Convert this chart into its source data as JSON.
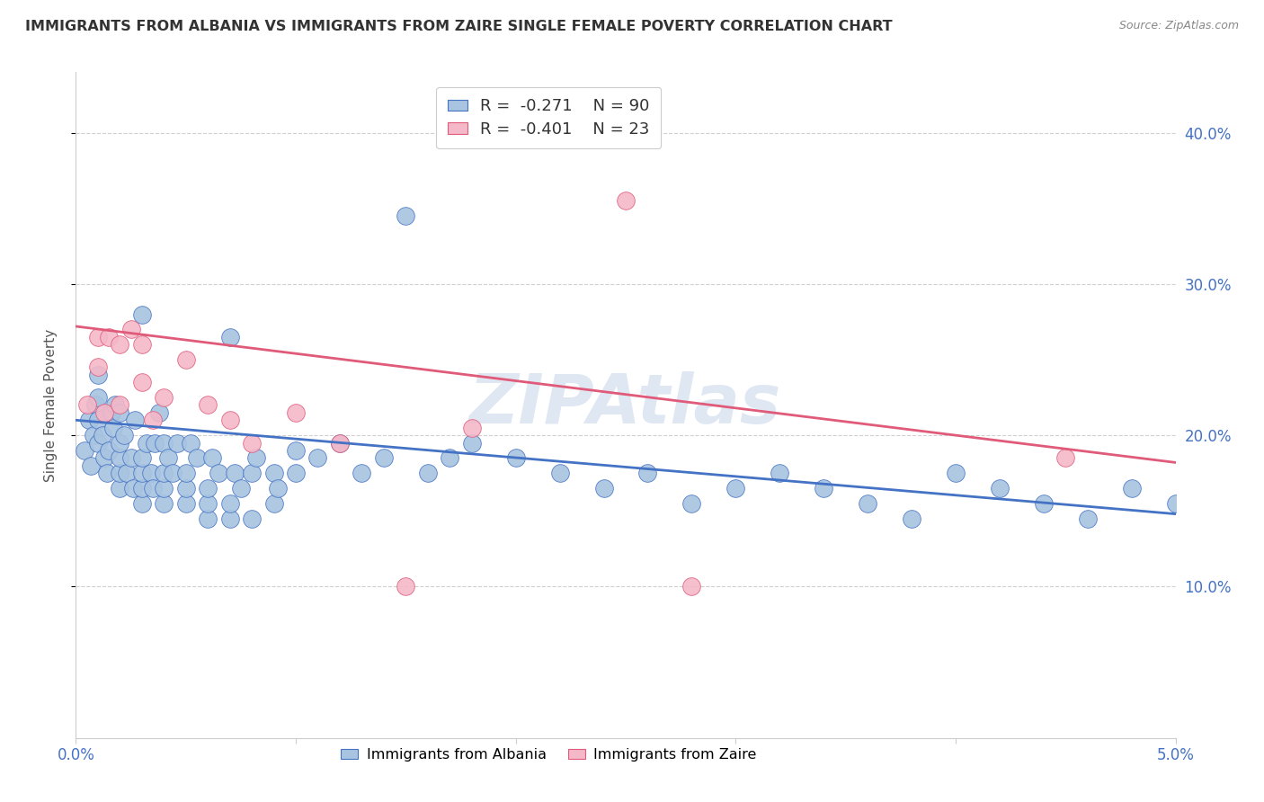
{
  "title": "IMMIGRANTS FROM ALBANIA VS IMMIGRANTS FROM ZAIRE SINGLE FEMALE POVERTY CORRELATION CHART",
  "source": "Source: ZipAtlas.com",
  "ylabel": "Single Female Poverty",
  "yaxis_labels": [
    "10.0%",
    "20.0%",
    "30.0%",
    "40.0%"
  ],
  "yaxis_values": [
    0.1,
    0.2,
    0.3,
    0.4
  ],
  "xmin": 0.0,
  "xmax": 0.05,
  "ymin": 0.0,
  "ymax": 0.44,
  "color_albania": "#a8c4e0",
  "color_zaire": "#f4b8c8",
  "line_color_albania": "#4472c4",
  "line_color_zaire": "#e05a7a",
  "watermark": "ZIPAtlas",
  "albania_line_x0": 0.0,
  "albania_line_y0": 0.21,
  "albania_line_x1": 0.05,
  "albania_line_y1": 0.148,
  "zaire_line_x0": 0.0,
  "zaire_line_y0": 0.272,
  "zaire_line_x1": 0.05,
  "zaire_line_y1": 0.182,
  "albania_x": [
    0.0004,
    0.0006,
    0.0007,
    0.0008,
    0.0009,
    0.001,
    0.001,
    0.001,
    0.001,
    0.0012,
    0.0013,
    0.0014,
    0.0015,
    0.0016,
    0.0017,
    0.0018,
    0.002,
    0.002,
    0.002,
    0.002,
    0.002,
    0.0022,
    0.0023,
    0.0025,
    0.0026,
    0.0027,
    0.003,
    0.003,
    0.003,
    0.003,
    0.003,
    0.0032,
    0.0034,
    0.0035,
    0.0036,
    0.0038,
    0.004,
    0.004,
    0.004,
    0.004,
    0.0042,
    0.0044,
    0.0046,
    0.005,
    0.005,
    0.005,
    0.0052,
    0.0055,
    0.006,
    0.006,
    0.006,
    0.0062,
    0.0065,
    0.007,
    0.007,
    0.007,
    0.0072,
    0.0075,
    0.008,
    0.008,
    0.0082,
    0.009,
    0.009,
    0.0092,
    0.01,
    0.01,
    0.011,
    0.012,
    0.013,
    0.014,
    0.015,
    0.016,
    0.017,
    0.018,
    0.02,
    0.022,
    0.024,
    0.026,
    0.028,
    0.03,
    0.032,
    0.034,
    0.036,
    0.038,
    0.04,
    0.042,
    0.044,
    0.046,
    0.048,
    0.05
  ],
  "albania_y": [
    0.19,
    0.21,
    0.18,
    0.2,
    0.22,
    0.195,
    0.21,
    0.225,
    0.24,
    0.2,
    0.185,
    0.175,
    0.19,
    0.215,
    0.205,
    0.22,
    0.165,
    0.175,
    0.185,
    0.195,
    0.215,
    0.2,
    0.175,
    0.185,
    0.165,
    0.21,
    0.155,
    0.165,
    0.175,
    0.185,
    0.28,
    0.195,
    0.175,
    0.165,
    0.195,
    0.215,
    0.155,
    0.165,
    0.175,
    0.195,
    0.185,
    0.175,
    0.195,
    0.155,
    0.165,
    0.175,
    0.195,
    0.185,
    0.145,
    0.155,
    0.165,
    0.185,
    0.175,
    0.145,
    0.155,
    0.265,
    0.175,
    0.165,
    0.145,
    0.175,
    0.185,
    0.155,
    0.175,
    0.165,
    0.175,
    0.19,
    0.185,
    0.195,
    0.175,
    0.185,
    0.345,
    0.175,
    0.185,
    0.195,
    0.185,
    0.175,
    0.165,
    0.175,
    0.155,
    0.165,
    0.175,
    0.165,
    0.155,
    0.145,
    0.175,
    0.165,
    0.155,
    0.145,
    0.165,
    0.155
  ],
  "zaire_x": [
    0.0005,
    0.001,
    0.001,
    0.0013,
    0.0015,
    0.002,
    0.002,
    0.0025,
    0.003,
    0.003,
    0.0035,
    0.004,
    0.005,
    0.006,
    0.007,
    0.008,
    0.01,
    0.012,
    0.015,
    0.018,
    0.025,
    0.028,
    0.045
  ],
  "zaire_y": [
    0.22,
    0.245,
    0.265,
    0.215,
    0.265,
    0.26,
    0.22,
    0.27,
    0.235,
    0.26,
    0.21,
    0.225,
    0.25,
    0.22,
    0.21,
    0.195,
    0.215,
    0.195,
    0.1,
    0.205,
    0.355,
    0.1,
    0.185
  ]
}
